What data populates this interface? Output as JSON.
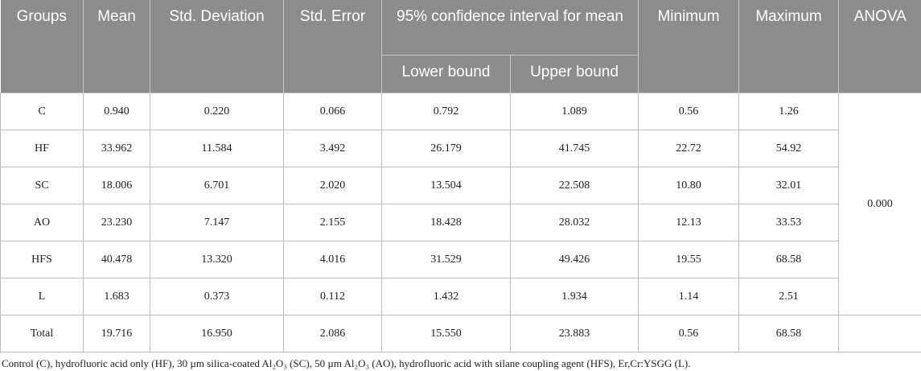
{
  "table": {
    "header": [
      "Groups",
      "Mean",
      "Std. Deviation",
      "Std. Error",
      "95% confidence interval for mean",
      "Minimum",
      "Maximum",
      "ANOVA"
    ],
    "subheader": [
      "Lower bound",
      "Upper bound"
    ],
    "rows": [
      [
        "C",
        "0.940",
        "0.220",
        "0.066",
        "0.792",
        "1.089",
        "0.56",
        "1.26"
      ],
      [
        "HF",
        "33.962",
        "11.584",
        "3.492",
        "26.179",
        "41.745",
        "22.72",
        "54.92"
      ],
      [
        "SC",
        "18.006",
        "6.701",
        "2.020",
        "13.504",
        "22.508",
        "10.80",
        "32.01"
      ],
      [
        "AO",
        "23.230",
        "7.147",
        "2.155",
        "18.428",
        "28.032",
        "12.13",
        "33.53"
      ],
      [
        "HFS",
        "40.478",
        "13.320",
        "4.016",
        "31.529",
        "49.426",
        "19.55",
        "68.58"
      ],
      [
        "L",
        "1.683",
        "0.373",
        "0.112",
        "1.432",
        "1.934",
        "1.14",
        "2.51"
      ],
      [
        "Total",
        "19.716",
        "16.950",
        "2.086",
        "15.550",
        "23.883",
        "0.56",
        "68.58"
      ]
    ],
    "anova": "0.000"
  },
  "footnote": "Control (C), hydrofluoric acid only (HF), 30 µm silica-coated Al₂O₃ (SC), 50 µm Al₂O₃ (AO), hydrofluoric acid with silane coupling agent (HFS), Er,Cr:YSGG (L)."
}
